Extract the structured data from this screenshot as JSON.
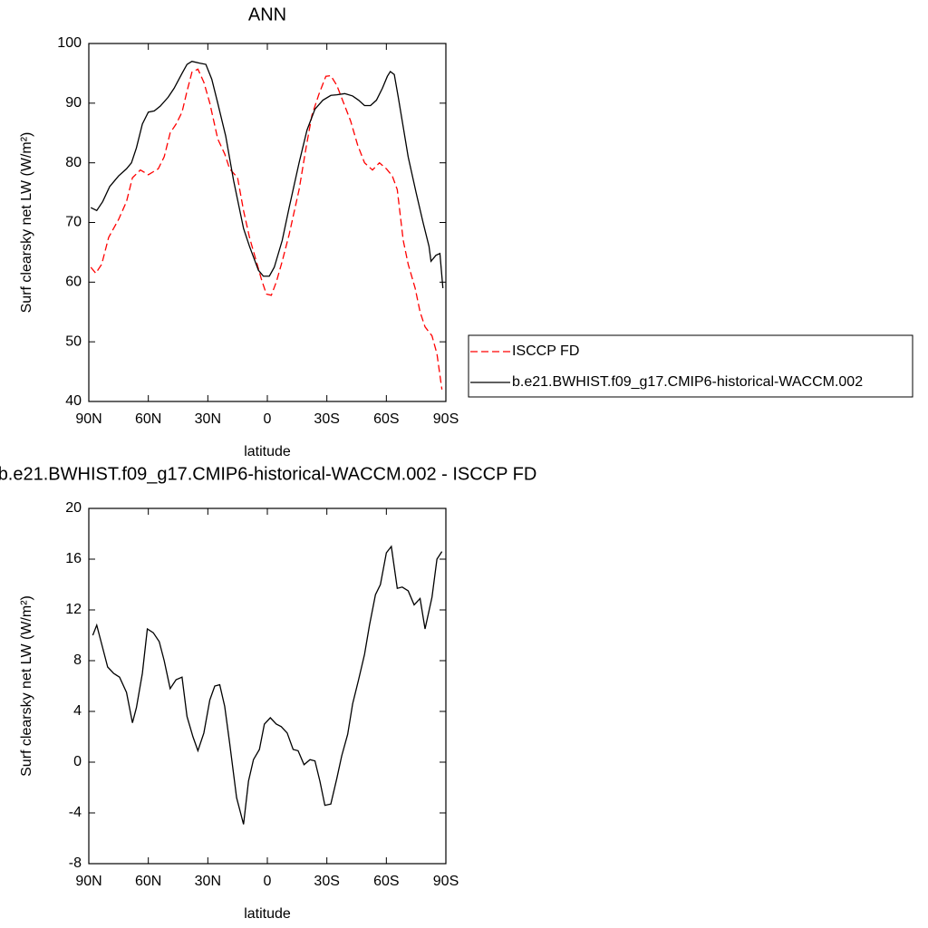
{
  "chart_data": [
    {
      "type": "line",
      "title": "ANN",
      "xlabel": "latitude",
      "ylabel": "Surf clearsky net LW (W/m²)",
      "xlim": [
        90,
        -90
      ],
      "ylim": [
        40,
        100
      ],
      "xticks": [
        {
          "value": 90,
          "label": "90N"
        },
        {
          "value": 60,
          "label": "60N"
        },
        {
          "value": 30,
          "label": "30N"
        },
        0,
        {
          "value": -30,
          "label": "30S"
        },
        {
          "value": -60,
          "label": "60S"
        },
        {
          "value": -90,
          "label": "90S"
        }
      ],
      "yticks": [
        40,
        50,
        60,
        70,
        80,
        90,
        100
      ],
      "legend": "right",
      "series": [
        {
          "name": "ISCCP FD",
          "color": "#ff0000",
          "linestyle": "dashed",
          "x": [
            89,
            86.5,
            83.5,
            80,
            75,
            71,
            68,
            64,
            60,
            55,
            52,
            49,
            46,
            43,
            40.5,
            38,
            35,
            32,
            29,
            25,
            21.5,
            19,
            15,
            12,
            9,
            6,
            3,
            0.5,
            -2,
            -4.5,
            -7.5,
            -11,
            -16,
            -19.5,
            -22.5,
            -26,
            -29.5,
            -32,
            -35,
            -38.5,
            -42,
            -45.5,
            -49,
            -53,
            -56.5,
            -60,
            -63,
            -65.5,
            -68.5,
            -71,
            -74.5,
            -77,
            -79.5,
            -83,
            -85.5,
            -88
          ],
          "values": [
            62.5,
            61.5,
            63,
            67.5,
            70.5,
            73.5,
            77.5,
            78.8,
            78,
            79,
            81,
            85,
            86.5,
            88.5,
            92,
            95.2,
            95.7,
            93.5,
            90,
            84,
            81.5,
            79,
            77.5,
            72,
            67.5,
            64,
            60.5,
            58,
            57.8,
            60,
            63.5,
            68,
            75.5,
            82.5,
            88,
            91.5,
            94.5,
            94.6,
            93,
            90,
            87,
            83,
            80,
            78.8,
            80,
            79,
            77.8,
            75.5,
            67,
            63,
            59,
            55,
            52.5,
            51,
            48,
            42
          ]
        },
        {
          "name": "b.e21.BWHIST.f09_g17.CMIP6-historical-WACCM.002",
          "color": "#000000",
          "linestyle": "solid",
          "x": [
            89,
            86,
            83,
            79.5,
            75,
            71,
            68.5,
            66,
            63,
            60,
            57,
            54,
            50,
            47,
            43,
            40.5,
            38,
            34,
            31,
            28,
            25,
            21,
            17,
            12,
            9,
            4.5,
            2,
            -1,
            -3.5,
            -7.5,
            -11,
            -16,
            -20,
            -24,
            -28,
            -32,
            -35,
            -39,
            -43,
            -46,
            -49,
            -52,
            -55,
            -58,
            -60.5,
            -62,
            -64,
            -66,
            -68.5,
            -71,
            -75,
            -78.5,
            -81.5,
            -82.5,
            -85,
            -87,
            -88.5
          ],
          "values": [
            72.5,
            72,
            73.5,
            76,
            77.8,
            79,
            80,
            82.5,
            86.5,
            88.5,
            88.7,
            89.5,
            91,
            92.5,
            95,
            96.5,
            97,
            96.7,
            96.5,
            94,
            90,
            84.5,
            77,
            69,
            66,
            62,
            61,
            61,
            62.5,
            67,
            72.5,
            80,
            85.5,
            89,
            90.5,
            91.3,
            91.4,
            91.6,
            91.2,
            90.5,
            89.6,
            89.6,
            90.5,
            92.5,
            94.5,
            95.3,
            94.8,
            91,
            86,
            81,
            75,
            70,
            66,
            63.5,
            64.5,
            64.8,
            59
          ]
        }
      ]
    },
    {
      "type": "line",
      "title": "b.e21.BWHIST.f09_g17.CMIP6-historical-WACCM.002 - ISCCP FD",
      "xlabel": "latitude",
      "ylabel": "Surf clearsky net LW (W/m²)",
      "xlim": [
        90,
        -90
      ],
      "ylim": [
        -8,
        20
      ],
      "xticks": [
        {
          "value": 90,
          "label": "90N"
        },
        {
          "value": 60,
          "label": "60N"
        },
        {
          "value": 30,
          "label": "30N"
        },
        0,
        {
          "value": -30,
          "label": "30S"
        },
        {
          "value": -60,
          "label": "60S"
        },
        {
          "value": -90,
          "label": "90S"
        }
      ],
      "yticks": [
        -8,
        -4,
        0,
        4,
        8,
        12,
        16,
        20
      ],
      "color": "#000000",
      "x": [
        88,
        86,
        83,
        80.5,
        77.5,
        74.5,
        71,
        68,
        66,
        63,
        60.5,
        57.5,
        54.5,
        52,
        49,
        46,
        43,
        40.5,
        37.5,
        35,
        32,
        29,
        26.5,
        24,
        21.5,
        19,
        15.5,
        12,
        9.5,
        7,
        4,
        1.5,
        -1.5,
        -4.5,
        -7,
        -10,
        -13,
        -15.5,
        -18.5,
        -21.5,
        -24,
        -26.5,
        -29,
        -32,
        -35,
        -37.5,
        -40.5,
        -43,
        -46,
        -49,
        -51.5,
        -54.5,
        -57,
        -60,
        -62.5,
        -65.5,
        -68,
        -71,
        -74,
        -77,
        -79.5,
        -83,
        -85.5,
        -88
      ],
      "values": [
        10,
        10.8,
        9,
        7.5,
        7,
        6.7,
        5.5,
        3.1,
        4.3,
        7,
        10.5,
        10.2,
        9.5,
        8,
        5.8,
        6.5,
        6.7,
        3.6,
        2,
        0.9,
        2.3,
        4.9,
        6,
        6.1,
        4.4,
        1.5,
        -2.8,
        -4.9,
        -1.5,
        0.2,
        1,
        3,
        3.5,
        3,
        2.8,
        2.3,
        1,
        0.9,
        -0.2,
        0.2,
        0.1,
        -1.5,
        -3.4,
        -3.3,
        -1.3,
        0.5,
        2.2,
        4.6,
        6.5,
        8.5,
        10.8,
        13.2,
        14,
        16.5,
        17,
        13.7,
        13.8,
        13.5,
        12.4,
        12.9,
        10.5,
        13,
        16,
        16.6
      ]
    }
  ]
}
